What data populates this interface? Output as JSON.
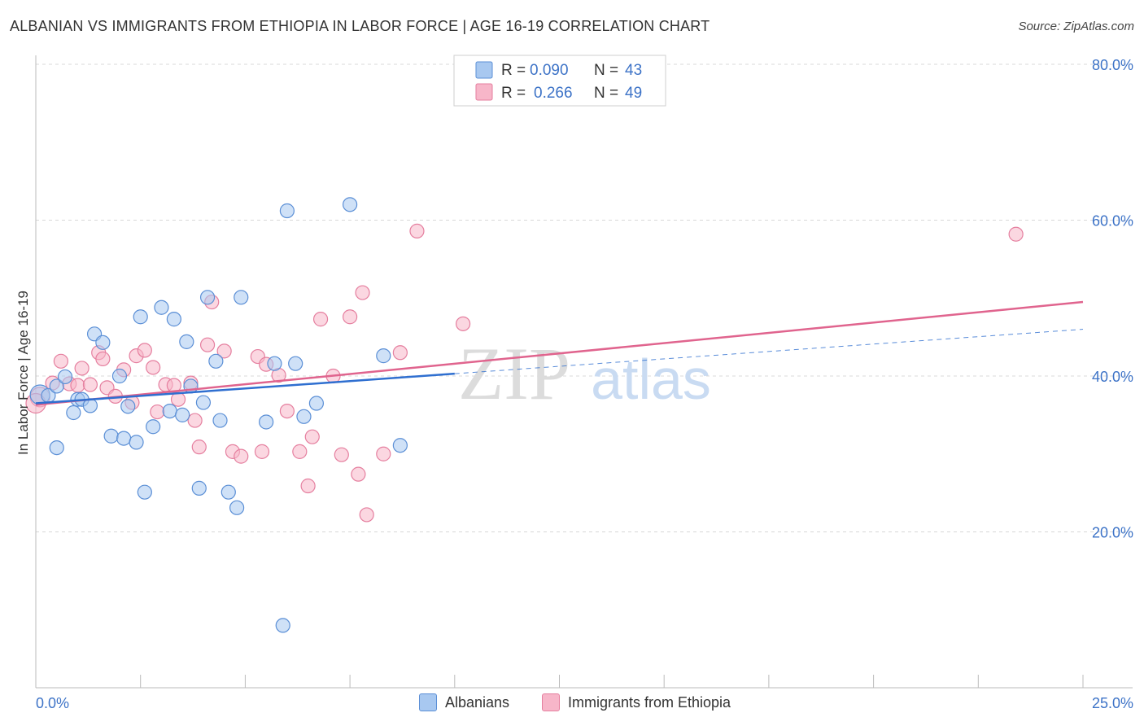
{
  "title": "ALBANIAN VS IMMIGRANTS FROM ETHIOPIA IN LABOR FORCE | AGE 16-19 CORRELATION CHART",
  "source": "Source: ZipAtlas.com",
  "watermark": {
    "zip": "ZIP",
    "atlas": "atlas"
  },
  "legend_top": [
    {
      "r_label": "R =",
      "r_value": "0.090",
      "n_label": "N =",
      "n_value": "43"
    },
    {
      "r_label": "R =",
      "r_value": "0.266",
      "n_label": "N =",
      "n_value": "49"
    }
  ],
  "legend_bottom": [
    {
      "label": "Albanians"
    },
    {
      "label": "Immigrants from Ethiopia"
    }
  ],
  "colors": {
    "albanian_fill": "#a8c8f0",
    "albanian_stroke": "#5b8fd6",
    "albanian_line": "#2f6fd0",
    "ethiopia_fill": "#f7b6c9",
    "ethiopia_stroke": "#e57f9f",
    "ethiopia_line": "#e0648e",
    "axis_label": "#3d73c7",
    "grid": "#d8d8d8"
  },
  "chart_data": {
    "type": "scatter",
    "title": "ALBANIAN VS IMMIGRANTS FROM ETHIOPIA IN LABOR FORCE | AGE 16-19 CORRELATION CHART",
    "xlabel": "",
    "ylabel": "In Labor Force | Age 16-19",
    "xlim": [
      0,
      25
    ],
    "ylim": [
      0,
      80
    ],
    "x_tick_labels": [
      {
        "value": 0,
        "label": "0.0%"
      },
      {
        "value": 25,
        "label": "25.0%"
      }
    ],
    "y_ticks": [
      {
        "value": 20,
        "label": "20.0%"
      },
      {
        "value": 40,
        "label": "40.0%"
      },
      {
        "value": 60,
        "label": "60.0%"
      },
      {
        "value": 80,
        "label": "80.0%"
      }
    ],
    "x_minor_ticks": [
      2.5,
      5,
      7.5,
      10,
      12.5,
      15,
      17.5,
      20,
      22.5,
      25
    ],
    "series": [
      {
        "name": "Albanians",
        "r": 0.09,
        "n": 43,
        "points": [
          [
            0.1,
            37.6
          ],
          [
            0.3,
            37.5
          ],
          [
            0.5,
            30.8
          ],
          [
            0.5,
            38.7
          ],
          [
            0.7,
            39.9
          ],
          [
            0.9,
            35.3
          ],
          [
            1.0,
            37.0
          ],
          [
            1.1,
            37.0
          ],
          [
            1.3,
            36.2
          ],
          [
            1.4,
            45.4
          ],
          [
            1.6,
            44.3
          ],
          [
            1.8,
            32.3
          ],
          [
            2.0,
            40.0
          ],
          [
            2.1,
            32.0
          ],
          [
            2.2,
            36.1
          ],
          [
            2.4,
            31.5
          ],
          [
            2.5,
            47.6
          ],
          [
            2.6,
            25.1
          ],
          [
            2.8,
            33.5
          ],
          [
            3.0,
            48.8
          ],
          [
            3.2,
            35.5
          ],
          [
            3.3,
            47.3
          ],
          [
            3.5,
            35.0
          ],
          [
            3.6,
            44.4
          ],
          [
            3.7,
            38.7
          ],
          [
            4.0,
            36.6
          ],
          [
            4.1,
            50.1
          ],
          [
            4.3,
            41.9
          ],
          [
            4.4,
            34.3
          ],
          [
            4.6,
            25.1
          ],
          [
            4.8,
            23.1
          ],
          [
            4.9,
            50.1
          ],
          [
            5.5,
            34.1
          ],
          [
            5.7,
            41.6
          ],
          [
            5.9,
            8.0
          ],
          [
            6.0,
            61.2
          ],
          [
            6.2,
            41.6
          ],
          [
            6.4,
            34.8
          ],
          [
            6.7,
            36.5
          ],
          [
            7.5,
            62.0
          ],
          [
            8.3,
            42.6
          ],
          [
            8.7,
            31.1
          ],
          [
            3.9,
            25.6
          ]
        ]
      },
      {
        "name": "Immigrants from Ethiopia",
        "r": 0.266,
        "n": 49,
        "points": [
          [
            0.1,
            37.3
          ],
          [
            0.4,
            39.1
          ],
          [
            0.6,
            41.9
          ],
          [
            0.8,
            39.0
          ],
          [
            1.0,
            38.8
          ],
          [
            1.1,
            41.0
          ],
          [
            1.3,
            38.9
          ],
          [
            1.5,
            43.0
          ],
          [
            1.6,
            42.2
          ],
          [
            1.7,
            38.5
          ],
          [
            1.9,
            37.4
          ],
          [
            2.1,
            40.8
          ],
          [
            2.3,
            36.6
          ],
          [
            2.4,
            42.6
          ],
          [
            2.6,
            43.3
          ],
          [
            2.8,
            41.1
          ],
          [
            2.9,
            35.4
          ],
          [
            3.1,
            38.9
          ],
          [
            3.3,
            38.8
          ],
          [
            3.4,
            37.0
          ],
          [
            3.7,
            39.1
          ],
          [
            3.8,
            34.3
          ],
          [
            3.9,
            30.9
          ],
          [
            4.1,
            44.0
          ],
          [
            4.2,
            49.5
          ],
          [
            4.5,
            43.2
          ],
          [
            4.7,
            30.3
          ],
          [
            4.9,
            29.7
          ],
          [
            5.3,
            42.5
          ],
          [
            5.4,
            30.3
          ],
          [
            5.5,
            41.5
          ],
          [
            5.8,
            40.1
          ],
          [
            6.0,
            35.5
          ],
          [
            6.3,
            30.3
          ],
          [
            6.5,
            25.9
          ],
          [
            6.6,
            32.2
          ],
          [
            6.8,
            47.3
          ],
          [
            7.1,
            40.0
          ],
          [
            7.3,
            29.9
          ],
          [
            7.5,
            47.6
          ],
          [
            7.7,
            27.4
          ],
          [
            7.8,
            50.7
          ],
          [
            7.9,
            22.2
          ],
          [
            8.3,
            30.0
          ],
          [
            8.7,
            43.0
          ],
          [
            9.1,
            58.6
          ],
          [
            10.2,
            46.7
          ],
          [
            23.4,
            58.2
          ],
          [
            0.0,
            36.5
          ]
        ]
      }
    ],
    "trend_lines": [
      {
        "series": "Albanians",
        "x0": 0,
        "y0": 36.5,
        "x1": 10,
        "y1": 40.3,
        "dashed_to_x": 25,
        "dashed_to_y": 46.0
      },
      {
        "series": "Immigrants from Ethiopia",
        "x0": 0,
        "y0": 36.3,
        "x1": 25,
        "y1": 49.5
      }
    ]
  }
}
